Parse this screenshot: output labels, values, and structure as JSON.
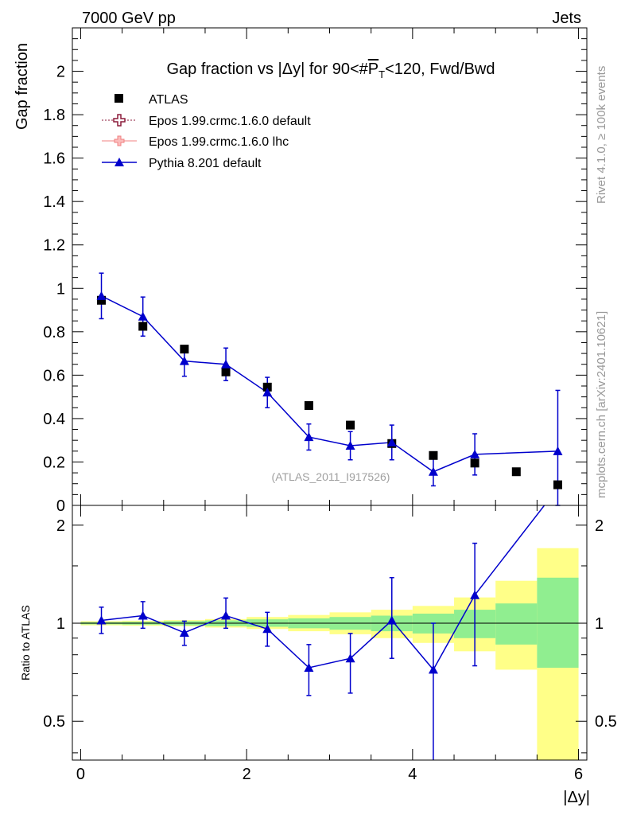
{
  "header": {
    "left": "7000 GeV pp",
    "right": "Jets"
  },
  "side_labels": {
    "rivet": "Rivet 4.1.0, ≥ 100k events",
    "mcplots": "mcplots.cern.ch [arXiv:2401.10621]"
  },
  "chart_data": [
    {
      "type": "scatter",
      "panel": "main",
      "title": "Gap fraction vs |Δy| for 90<#P̅T<120, Fwd/Bwd",
      "title_parts": {
        "before": "Gap fraction vs |Δy| for 90<#",
        "overline": "P",
        "subscript": "T",
        "after": "<120, Fwd/Bwd"
      },
      "xlabel": "|Δy|",
      "ylabel": "Gap fraction",
      "xlim": [
        -0.1,
        6.1
      ],
      "ylim": [
        0,
        2.2
      ],
      "xticks": [
        0,
        2,
        4,
        6
      ],
      "yticks": [
        0,
        0.2,
        0.4,
        0.6,
        0.8,
        1,
        1.2,
        1.4,
        1.6,
        1.8,
        2
      ],
      "ytick_labels": [
        "0",
        "0.2",
        "0.4",
        "0.6",
        "0.8",
        "1",
        "1.2",
        "1.4",
        "1.6",
        "1.8",
        "2"
      ],
      "watermark": "(ATLAS_2011_I917526)",
      "legend": {
        "position": "top-left",
        "entries": [
          {
            "label": "ATLAS",
            "color": "#000000",
            "marker": "square"
          },
          {
            "label": "Epos 1.99.crmc.1.6.0 default",
            "color": "#8b1a3a",
            "marker": "open-cross",
            "line": "dotted"
          },
          {
            "label": "Epos 1.99.crmc.1.6.0 lhc",
            "color": "#f08080",
            "marker": "cross",
            "line": "solid"
          },
          {
            "label": "Pythia 8.201 default",
            "color": "#0000cc",
            "marker": "triangle",
            "line": "solid"
          }
        ]
      },
      "series": [
        {
          "name": "ATLAS",
          "x": [
            0.25,
            0.75,
            1.25,
            1.75,
            2.25,
            2.75,
            3.25,
            3.75,
            4.25,
            4.75,
            5.25,
            5.75
          ],
          "y": [
            0.945,
            0.825,
            0.72,
            0.615,
            0.545,
            0.46,
            0.37,
            0.285,
            0.23,
            0.195,
            0.155,
            0.095
          ]
        },
        {
          "name": "Pythia 8.201 default",
          "x": [
            0.25,
            0.75,
            1.25,
            1.75,
            2.25,
            2.75,
            3.25,
            3.75,
            4.25,
            4.75,
            5.75
          ],
          "y": [
            0.965,
            0.87,
            0.665,
            0.65,
            0.52,
            0.315,
            0.275,
            0.29,
            0.155,
            0.235,
            0.25
          ],
          "yerr": [
            0.105,
            0.09,
            0.07,
            0.075,
            0.07,
            0.06,
            0.065,
            0.08,
            0.065,
            0.095,
            0.28
          ]
        }
      ]
    },
    {
      "type": "line",
      "panel": "ratio",
      "ylabel": "Ratio to ATLAS",
      "ylim": [
        0.38,
        2.3
      ],
      "yticks": [
        0.5,
        1,
        2
      ],
      "ytick_labels": [
        "0.5",
        "1",
        "2"
      ],
      "bands": {
        "x_edges": [
          0,
          0.5,
          1,
          1.5,
          2,
          2.5,
          3,
          3.5,
          4,
          4.5,
          5,
          5.5,
          6
        ],
        "yellow_low": [
          0.985,
          0.982,
          0.978,
          0.97,
          0.96,
          0.945,
          0.925,
          0.9,
          0.87,
          0.82,
          0.72,
          0.38
        ],
        "yellow_high": [
          1.015,
          1.018,
          1.022,
          1.03,
          1.045,
          1.06,
          1.08,
          1.1,
          1.13,
          1.2,
          1.35,
          1.7
        ],
        "green_low": [
          0.992,
          0.99,
          0.985,
          0.98,
          0.975,
          0.965,
          0.955,
          0.945,
          0.93,
          0.9,
          0.86,
          0.73
        ],
        "green_high": [
          1.008,
          1.01,
          1.015,
          1.02,
          1.028,
          1.035,
          1.045,
          1.055,
          1.07,
          1.1,
          1.15,
          1.38
        ]
      },
      "series": [
        {
          "name": "Pythia 8.201 default",
          "x": [
            0.25,
            0.75,
            1.25,
            1.75,
            2.25,
            2.75,
            3.25,
            3.75,
            4.25,
            4.75,
            5.75
          ],
          "y": [
            1.02,
            1.055,
            0.935,
            1.055,
            0.96,
            0.73,
            0.78,
            1.02,
            0.72,
            1.22,
            2.6
          ],
          "yerr_low": [
            0.09,
            0.09,
            0.08,
            0.09,
            0.11,
            0.13,
            0.17,
            0.24,
            0.36,
            0.48,
            0
          ],
          "yerr_high": [
            0.1,
            0.11,
            0.08,
            0.14,
            0.12,
            0.13,
            0.15,
            0.36,
            0.28,
            0.54,
            0
          ]
        }
      ]
    }
  ]
}
